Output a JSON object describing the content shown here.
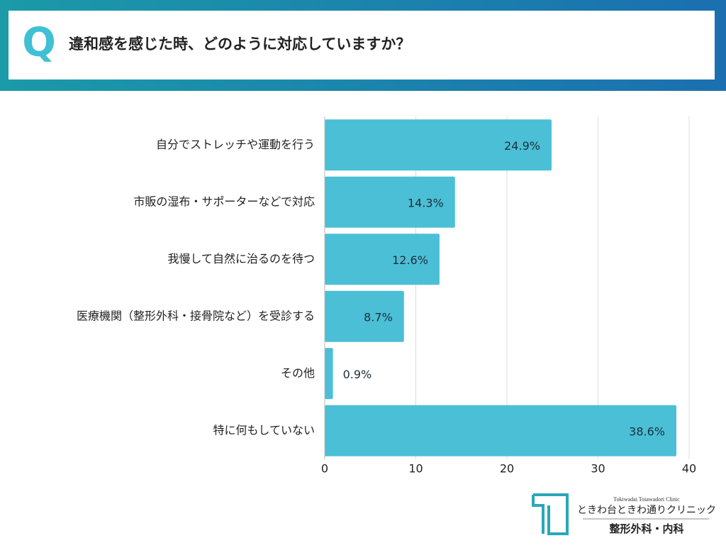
{
  "chart_data": {
    "type": "bar",
    "orientation": "horizontal",
    "badge": "Q",
    "title": "違和感を感じた時、どのように対応していますか？",
    "categories": [
      "自分でストレッチや運動を行う",
      "市販の湿布・サポーターなどで対応",
      "我慢して自然に治るのを待つ",
      "医療機関（整形外科・接骨院など）を受診する",
      "その他",
      "特に何もしていない"
    ],
    "values": [
      24.9,
      14.3,
      12.6,
      8.7,
      0.9,
      38.6
    ],
    "value_labels": [
      "24.9%",
      "14.3%",
      "12.6%",
      "8.7%",
      "0.9%",
      "38.6%"
    ],
    "color": "#4bbfd6",
    "xlim": [
      0,
      40
    ],
    "xticks": [
      0,
      10,
      20,
      30,
      40
    ],
    "grid": true
  },
  "logo": {
    "subtitle": "Tokiwadai Toiawadori Clinic",
    "name": "ときわ台ときわ通りクリニック",
    "department": "整形外科・内科"
  }
}
